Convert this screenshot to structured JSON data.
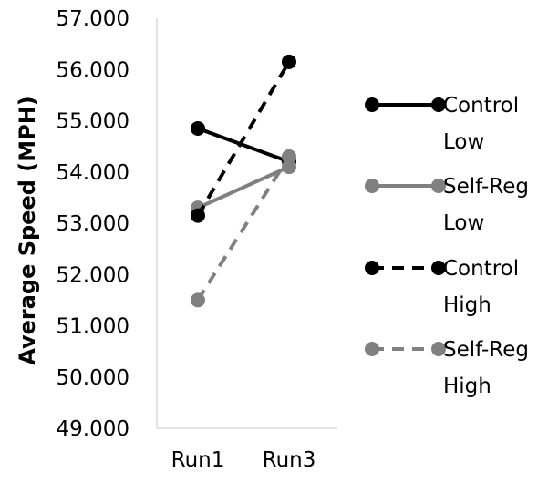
{
  "chart_data": {
    "type": "line",
    "title": "",
    "xlabel": "",
    "ylabel": "Average Speed (MPH)",
    "categories": [
      "Run1",
      "Run3"
    ],
    "ylim": [
      49,
      57
    ],
    "yticks": [
      "49.000",
      "50.000",
      "51.000",
      "52.000",
      "53.000",
      "54.000",
      "55.000",
      "56.000",
      "57.000"
    ],
    "grid": false,
    "legend_position": "right",
    "series": [
      {
        "name": "Control Low",
        "name_lines": [
          "Control",
          "Low"
        ],
        "values": [
          54.85,
          54.2
        ],
        "color": "#000000",
        "dashed": false
      },
      {
        "name": "Self-Reg Low",
        "name_lines": [
          "Self-Reg",
          "Low"
        ],
        "values": [
          53.3,
          54.1
        ],
        "color": "#808080",
        "dashed": false
      },
      {
        "name": "Control High",
        "name_lines": [
          "Control",
          "High"
        ],
        "values": [
          53.15,
          56.15
        ],
        "color": "#000000",
        "dashed": true
      },
      {
        "name": "Self-Reg High",
        "name_lines": [
          "Self-Reg",
          "High"
        ],
        "values": [
          51.5,
          54.3
        ],
        "color": "#808080",
        "dashed": true
      }
    ]
  }
}
